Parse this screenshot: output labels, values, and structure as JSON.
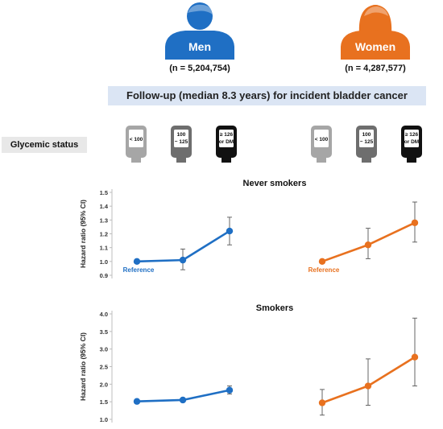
{
  "groups": {
    "men": {
      "label": "Men",
      "count": "(n = 5,204,754)",
      "color": "#1f6fc4",
      "icon": "man-silhouette-icon"
    },
    "women": {
      "label": "Women",
      "count": "(n = 4,287,577)",
      "color": "#e8711f",
      "icon": "woman-silhouette-icon"
    }
  },
  "followup_banner": "Follow-up (median 8.3 years) for incident bladder cancer",
  "glycemic": {
    "label": "Glycemic status",
    "meters": [
      {
        "line1": "< 100",
        "line2": "",
        "color": "#a6a6a6",
        "icon": "glucose-meter-icon"
      },
      {
        "line1": "100",
        "line2": "~ 125",
        "color": "#6e6e6e",
        "icon": "glucose-meter-icon"
      },
      {
        "line1": "≥ 126",
        "line2": "or DM",
        "color": "#111111",
        "icon": "glucose-meter-icon"
      }
    ]
  },
  "chart_data": [
    {
      "type": "line",
      "title": "Never smokers",
      "ylabel": "Hazard ratio (95% CI)",
      "ylim": [
        0.9,
        1.5
      ],
      "yticks": [
        "0.9",
        "1.0",
        "1.1",
        "1.2",
        "1.3",
        "1.4",
        "1.5"
      ],
      "reference_label": "Reference",
      "series": [
        {
          "group": "men",
          "color": "#1f6fc4",
          "values": [
            1.0,
            1.01,
            1.22
          ],
          "ci_low": [
            1.0,
            0.94,
            1.12
          ],
          "ci_high": [
            1.0,
            1.09,
            1.32
          ]
        },
        {
          "group": "women",
          "color": "#e8711f",
          "values": [
            1.0,
            1.12,
            1.28
          ],
          "ci_low": [
            1.0,
            1.02,
            1.14
          ],
          "ci_high": [
            1.0,
            1.24,
            1.43
          ]
        }
      ]
    },
    {
      "type": "line",
      "title": "Smokers",
      "ylabel": "Hazard ratio (95% CI)",
      "ylim": [
        1.0,
        4.0
      ],
      "yticks": [
        "1.0",
        "1.5",
        "2.0",
        "2.5",
        "3.0",
        "3.5",
        "4.0"
      ],
      "series": [
        {
          "group": "men",
          "color": "#1f6fc4",
          "values": [
            1.51,
            1.55,
            1.83
          ],
          "ci_low": [
            1.51,
            1.55,
            1.72
          ],
          "ci_high": [
            1.51,
            1.55,
            1.95
          ]
        },
        {
          "group": "women",
          "color": "#e8711f",
          "values": [
            1.47,
            1.95,
            2.77
          ],
          "ci_low": [
            1.12,
            1.4,
            1.95
          ],
          "ci_high": [
            1.85,
            2.72,
            3.88
          ]
        }
      ]
    }
  ]
}
